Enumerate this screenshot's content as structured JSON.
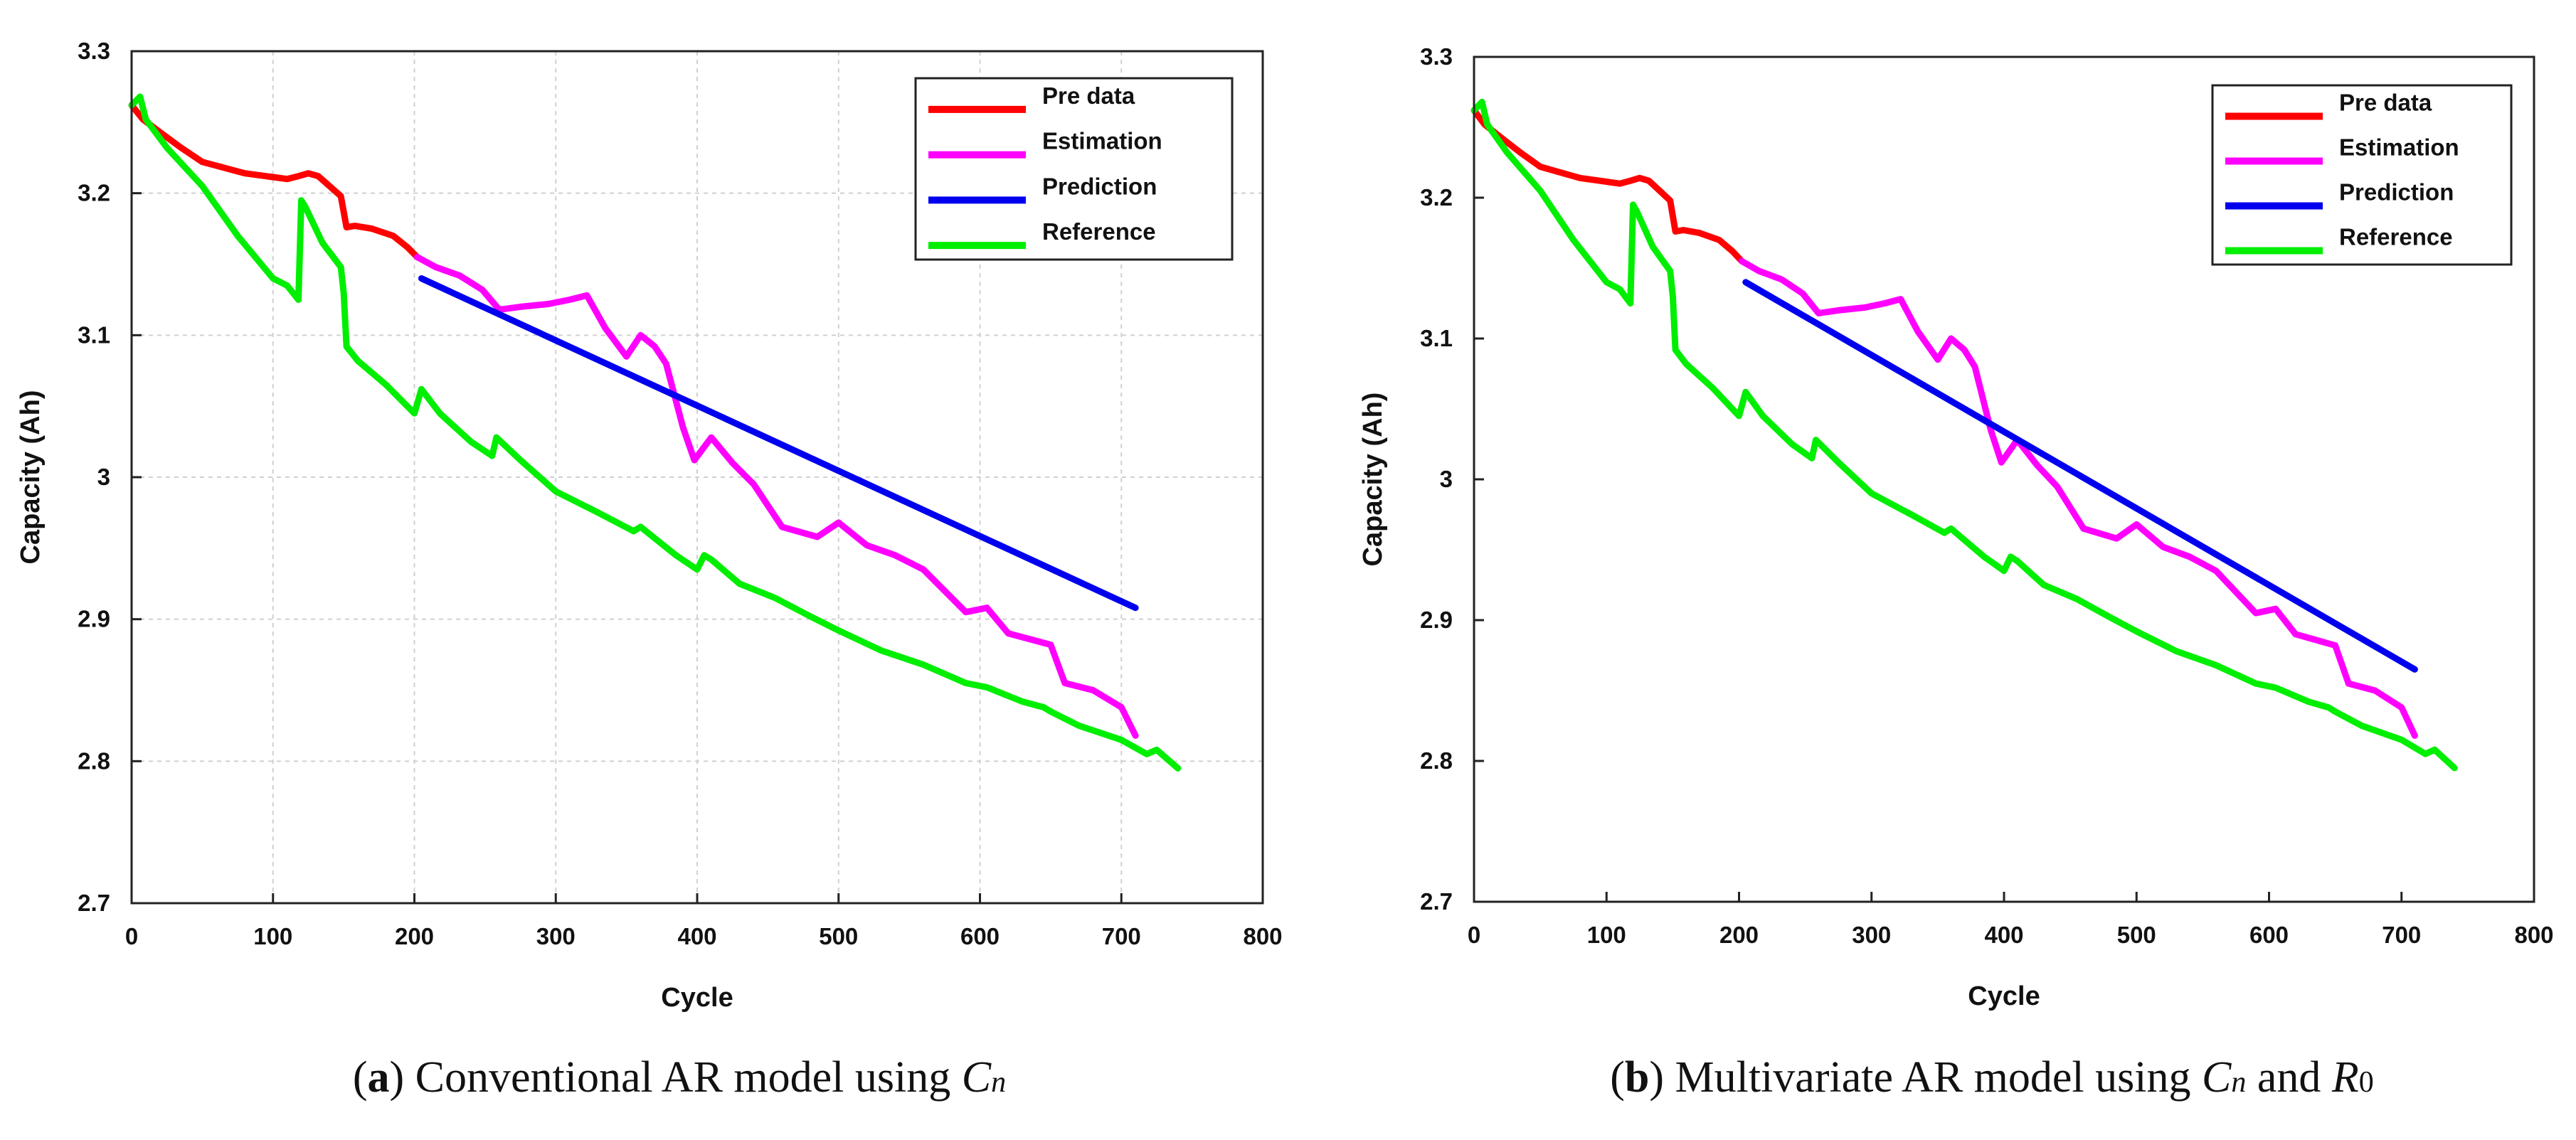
{
  "chart_data": [
    {
      "panel": "a",
      "type": "line",
      "caption": {
        "letter": "a",
        "text": "Conventional AR model using",
        "sym": "C",
        "sub": "n",
        "and": "",
        "sym2": "",
        "sub2": ""
      },
      "xlabel": "Cycle",
      "ylabel": "Capacity (Ah)",
      "xlim": [
        0,
        800
      ],
      "ylim": [
        2.7,
        3.3
      ],
      "xticks": [
        "0",
        "100",
        "200",
        "300",
        "400",
        "500",
        "600",
        "700",
        "800"
      ],
      "yticks": [
        "2.7",
        "2.8",
        "2.9",
        "3",
        "3.1",
        "3.2",
        "3.3"
      ],
      "grid": true,
      "legend_position": "top-right",
      "series": [
        {
          "name": "Pre data",
          "color": "#ff0000",
          "x": [
            0,
            8,
            20,
            35,
            50,
            65,
            80,
            95,
            110,
            118,
            125,
            132,
            140,
            148,
            152,
            158,
            170,
            185,
            195,
            202
          ],
          "y": [
            3.262,
            3.252,
            3.243,
            3.232,
            3.222,
            3.218,
            3.214,
            3.212,
            3.21,
            3.212,
            3.214,
            3.212,
            3.205,
            3.198,
            3.176,
            3.177,
            3.175,
            3.17,
            3.162,
            3.155
          ]
        },
        {
          "name": "Estimation",
          "color": "#ff00ff",
          "x": [
            202,
            215,
            232,
            248,
            260,
            275,
            295,
            310,
            322,
            335,
            350,
            360,
            370,
            378,
            390,
            398,
            410,
            425,
            440,
            460,
            485,
            500,
            520,
            540,
            560,
            590,
            605,
            620,
            650,
            660,
            680,
            700,
            710
          ],
          "y": [
            3.155,
            3.148,
            3.142,
            3.132,
            3.118,
            3.12,
            3.122,
            3.125,
            3.128,
            3.105,
            3.085,
            3.1,
            3.092,
            3.08,
            3.035,
            3.012,
            3.028,
            3.01,
            2.995,
            2.965,
            2.958,
            2.968,
            2.952,
            2.945,
            2.935,
            2.905,
            2.908,
            2.89,
            2.882,
            2.855,
            2.85,
            2.838,
            2.818
          ]
        },
        {
          "name": "Prediction",
          "color": "#0000ee",
          "x": [
            205,
            710
          ],
          "y": [
            3.14,
            2.908
          ]
        },
        {
          "name": "Reference",
          "color": "#00ee00",
          "x": [
            0,
            6,
            10,
            25,
            50,
            75,
            100,
            110,
            118,
            120,
            123,
            135,
            148,
            150,
            152,
            160,
            180,
            200,
            205,
            218,
            240,
            255,
            258,
            275,
            300,
            330,
            355,
            360,
            385,
            400,
            405,
            410,
            430,
            455,
            480,
            500,
            530,
            560,
            590,
            605,
            630,
            645,
            650,
            670,
            700,
            718,
            725,
            740
          ],
          "y": [
            3.262,
            3.268,
            3.252,
            3.232,
            3.205,
            3.17,
            3.14,
            3.135,
            3.125,
            3.195,
            3.19,
            3.165,
            3.148,
            3.13,
            3.092,
            3.082,
            3.065,
            3.045,
            3.062,
            3.045,
            3.025,
            3.015,
            3.028,
            3.012,
            2.99,
            2.975,
            2.962,
            2.965,
            2.945,
            2.935,
            2.945,
            2.942,
            2.925,
            2.915,
            2.902,
            2.892,
            2.878,
            2.868,
            2.855,
            2.852,
            2.842,
            2.838,
            2.835,
            2.825,
            2.815,
            2.805,
            2.808,
            2.795
          ]
        }
      ]
    },
    {
      "panel": "b",
      "type": "line",
      "caption": {
        "letter": "b",
        "text": "Multivariate AR model using",
        "sym": "C",
        "sub": "n",
        "and": "and",
        "sym2": "R",
        "sub2": "0"
      },
      "xlabel": "Cycle",
      "ylabel": "Capacity (Ah)",
      "xlim": [
        0,
        800
      ],
      "ylim": [
        2.7,
        3.3
      ],
      "xticks": [
        "0",
        "100",
        "200",
        "300",
        "400",
        "500",
        "600",
        "700",
        "800"
      ],
      "yticks": [
        "2.7",
        "2.8",
        "2.9",
        "3",
        "3.1",
        "3.2",
        "3.3"
      ],
      "grid": false,
      "legend_position": "top-right",
      "series": [
        {
          "name": "Pre data",
          "color": "#ff0000",
          "x": [
            0,
            8,
            20,
            35,
            50,
            65,
            80,
            95,
            110,
            118,
            125,
            132,
            140,
            148,
            152,
            158,
            170,
            185,
            195,
            202
          ],
          "y": [
            3.262,
            3.252,
            3.243,
            3.232,
            3.222,
            3.218,
            3.214,
            3.212,
            3.21,
            3.212,
            3.214,
            3.212,
            3.205,
            3.198,
            3.176,
            3.177,
            3.175,
            3.17,
            3.162,
            3.155
          ]
        },
        {
          "name": "Estimation",
          "color": "#ff00ff",
          "x": [
            202,
            215,
            232,
            248,
            260,
            275,
            295,
            310,
            322,
            335,
            350,
            360,
            370,
            378,
            390,
            398,
            410,
            425,
            440,
            460,
            485,
            500,
            520,
            540,
            560,
            590,
            605,
            620,
            650,
            660,
            680,
            700,
            710
          ],
          "y": [
            3.155,
            3.148,
            3.142,
            3.132,
            3.118,
            3.12,
            3.122,
            3.125,
            3.128,
            3.105,
            3.085,
            3.1,
            3.092,
            3.08,
            3.035,
            3.012,
            3.028,
            3.01,
            2.995,
            2.965,
            2.958,
            2.968,
            2.952,
            2.945,
            2.935,
            2.905,
            2.908,
            2.89,
            2.882,
            2.855,
            2.85,
            2.838,
            2.818
          ]
        },
        {
          "name": "Prediction",
          "color": "#0000ee",
          "x": [
            205,
            710
          ],
          "y": [
            3.14,
            2.865
          ]
        },
        {
          "name": "Reference",
          "color": "#00ee00",
          "x": [
            0,
            6,
            10,
            25,
            50,
            75,
            100,
            110,
            118,
            120,
            123,
            135,
            148,
            150,
            152,
            160,
            180,
            200,
            205,
            218,
            240,
            255,
            258,
            275,
            300,
            330,
            355,
            360,
            385,
            400,
            405,
            410,
            430,
            455,
            480,
            500,
            530,
            560,
            590,
            605,
            630,
            645,
            650,
            670,
            700,
            718,
            725,
            740
          ],
          "y": [
            3.262,
            3.268,
            3.252,
            3.232,
            3.205,
            3.17,
            3.14,
            3.135,
            3.125,
            3.195,
            3.19,
            3.165,
            3.148,
            3.13,
            3.092,
            3.082,
            3.065,
            3.045,
            3.062,
            3.045,
            3.025,
            3.015,
            3.028,
            3.012,
            2.99,
            2.975,
            2.962,
            2.965,
            2.945,
            2.935,
            2.945,
            2.942,
            2.925,
            2.915,
            2.902,
            2.892,
            2.878,
            2.868,
            2.855,
            2.852,
            2.842,
            2.838,
            2.835,
            2.825,
            2.815,
            2.805,
            2.808,
            2.795
          ]
        }
      ]
    }
  ]
}
